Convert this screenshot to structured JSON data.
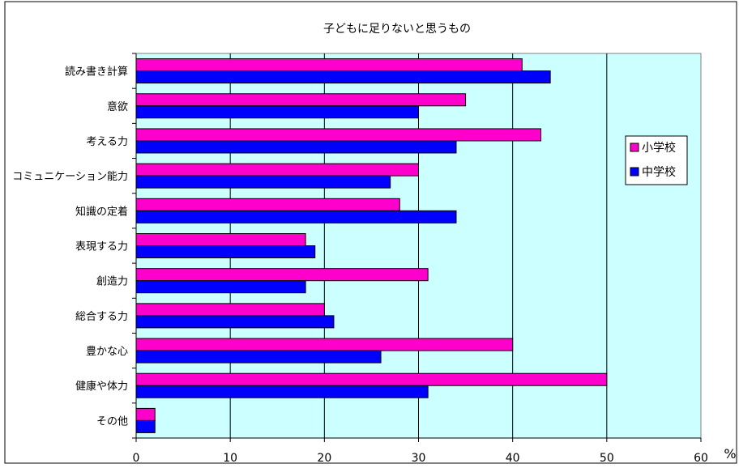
{
  "chart_data": {
    "type": "bar",
    "orientation": "horizontal",
    "title": "子どもに足りないと思うもの",
    "unit": "%",
    "categories": [
      "読み書き計算",
      "意欲",
      "考える力",
      "コミュニケーション能力",
      "知識の定着",
      "表現する力",
      "創造力",
      "総合する力",
      "豊かな心",
      "健康や体力",
      "その他"
    ],
    "series": [
      {
        "name": "小学校",
        "color": "#ff00cc",
        "values": [
          41,
          35,
          43,
          30,
          28,
          18,
          31,
          20,
          40,
          50,
          2
        ]
      },
      {
        "name": "中学校",
        "color": "#0000ff",
        "values": [
          44,
          30,
          34,
          27,
          34,
          19,
          18,
          21,
          26,
          31,
          2
        ]
      }
    ],
    "xlim": [
      0,
      60
    ],
    "xticks": [
      0,
      10,
      20,
      30,
      40,
      50,
      60
    ],
    "grid": true,
    "legend_position": "right",
    "plot_background": "#ccffff"
  }
}
